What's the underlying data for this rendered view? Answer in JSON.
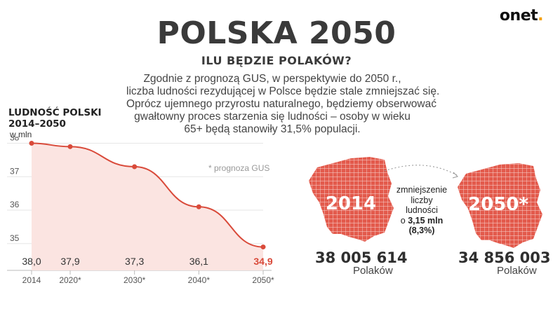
{
  "brand": {
    "logo_text": "onet",
    "logo_dot": ".",
    "dot_color": "#f5a000"
  },
  "header": {
    "title": "POLSKA 2050",
    "subtitle": "ILU BĘDZIE POLAKÓW?"
  },
  "intro": {
    "lines": [
      "Zgodnie z prognozą GUS, w perspektywie do 2050 r.,",
      "liczba ludności rezydującej w Polsce będzie stale zmniejszać się.",
      "Oprócz ujemnego przyrostu naturalnego, będziemy obserwować",
      "gwałtowny proces starzenia się ludności – osoby w wieku",
      "65+ będą stanowiły 31,5% populacji."
    ]
  },
  "chart_data": {
    "type": "area",
    "title": "LUDNOŚĆ POLSKI 2014–2050",
    "title_lines": [
      "LUDNOŚĆ POLSKI",
      "2014–2050"
    ],
    "ylabel": "w mln",
    "x_labels": [
      "2014",
      "2020*",
      "2030*",
      "2040*",
      "2050*"
    ],
    "x": [
      2014,
      2020,
      2030,
      2040,
      2050
    ],
    "values": [
      38.0,
      37.9,
      37.3,
      36.1,
      34.9
    ],
    "value_labels": [
      "38,0",
      "37,9",
      "37,3",
      "36,1",
      "34,9"
    ],
    "yticks": [
      38,
      37,
      36,
      35
    ],
    "ylim": [
      34.2,
      38.2
    ],
    "grid": true,
    "footnote": "* prognoza GUS",
    "line_color": "#d94a3a",
    "fill_color": "#fbe4e1",
    "highlight_color": "#d94a3a"
  },
  "maps": {
    "year_2014": "2014",
    "year_2050": "2050*",
    "color": "#e35a4c"
  },
  "comparison": {
    "lines": [
      "zmniejszenie",
      "liczby",
      "ludności"
    ],
    "prefix": "o",
    "amount": "3,15 mln",
    "percent": "(8,3%)"
  },
  "population": {
    "value_2014": "38 005 614",
    "unit_2014": "Polaków",
    "value_2050": "34 856 003",
    "unit_2050": "Polaków"
  }
}
